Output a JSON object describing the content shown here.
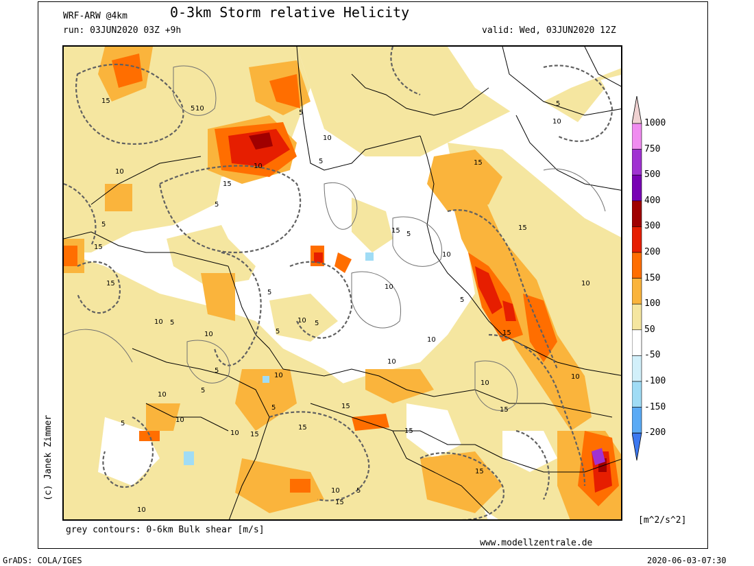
{
  "header": {
    "model": "WRF-ARW @4km",
    "title": "0-3km Storm relative Helicity",
    "run": "run: 03JUN2020 03Z +9h",
    "valid": "valid: Wed, 03JUN2020 12Z"
  },
  "footer": {
    "contours_note": "grey contours: 0-6km Bulk shear [m/s]",
    "website": "www.modellzentrale.de",
    "grads": "GrADS: COLA/IGES",
    "timestamp": "2020-06-03-07:30",
    "copyright": "(c) Janek Zimmer"
  },
  "legend": {
    "unit": "[m^2/s^2]",
    "levels": [
      {
        "label": "1000",
        "color": "#f0d2d2"
      },
      {
        "label": "750",
        "color": "#f08cf0"
      },
      {
        "label": "500",
        "color": "#a032d2"
      },
      {
        "label": "400",
        "color": "#7800b4"
      },
      {
        "label": "300",
        "color": "#a00000"
      },
      {
        "label": "200",
        "color": "#e61e00"
      },
      {
        "label": "150",
        "color": "#ff6e00"
      },
      {
        "label": "100",
        "color": "#fab43c"
      },
      {
        "label": "50",
        "color": "#f5e6a0"
      },
      {
        "label": "-50",
        "color": "#ffffff"
      },
      {
        "label": "-100",
        "color": "#d2f0fa"
      },
      {
        "label": "-150",
        "color": "#a0dcf5"
      },
      {
        "label": "-200",
        "color": "#5aaaf5"
      }
    ],
    "bottom_color": "#3c78f0"
  },
  "contour_labels": [
    "5",
    "10",
    "15"
  ]
}
